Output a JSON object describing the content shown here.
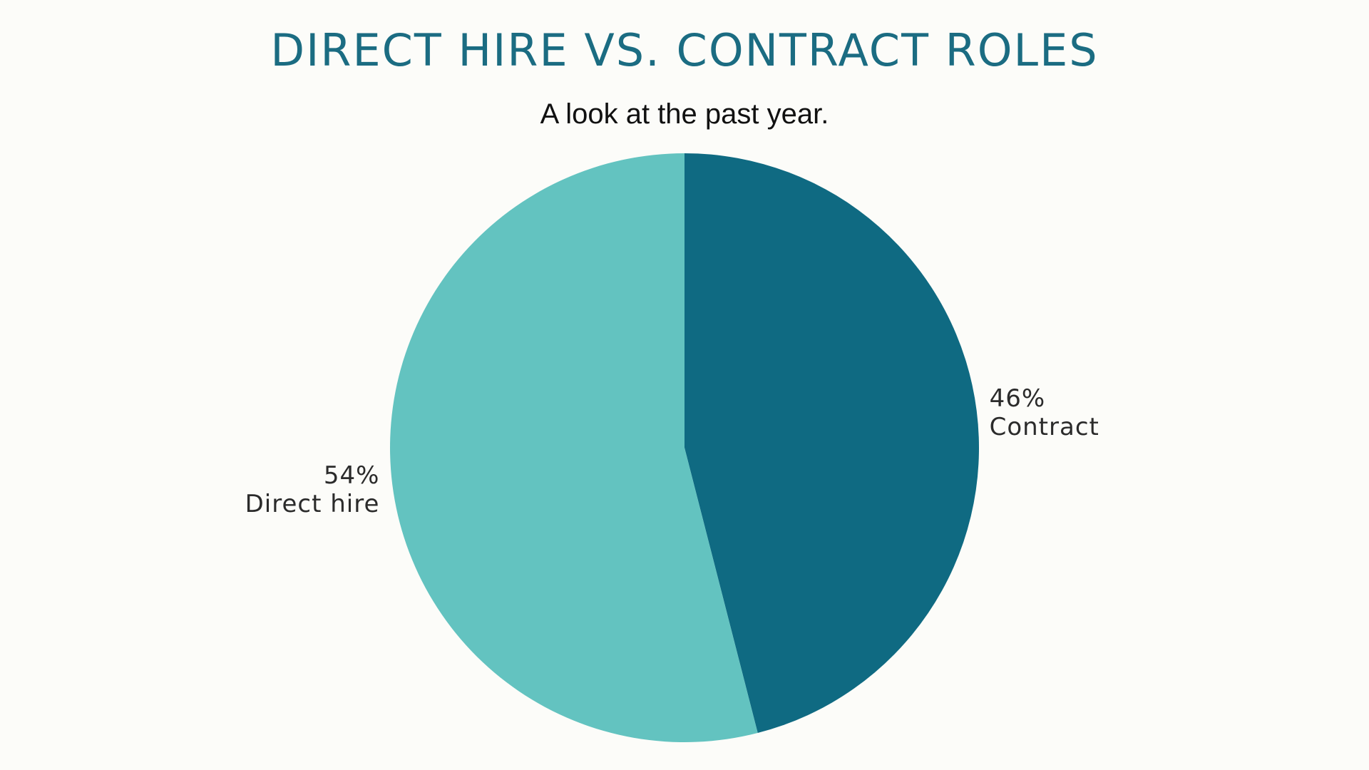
{
  "chart_data": {
    "type": "pie",
    "title": "DIRECT HIRE VS. CONTRACT ROLES",
    "subtitle": "A look at the past year.",
    "slices": [
      {
        "label": "Contract",
        "value": 46,
        "value_label": "46%",
        "color": "#0f6a82"
      },
      {
        "label": "Direct hire",
        "value": 54,
        "value_label": "54%",
        "color": "#63c3c0"
      }
    ],
    "start_angle_deg": 0,
    "direction": "clockwise"
  }
}
